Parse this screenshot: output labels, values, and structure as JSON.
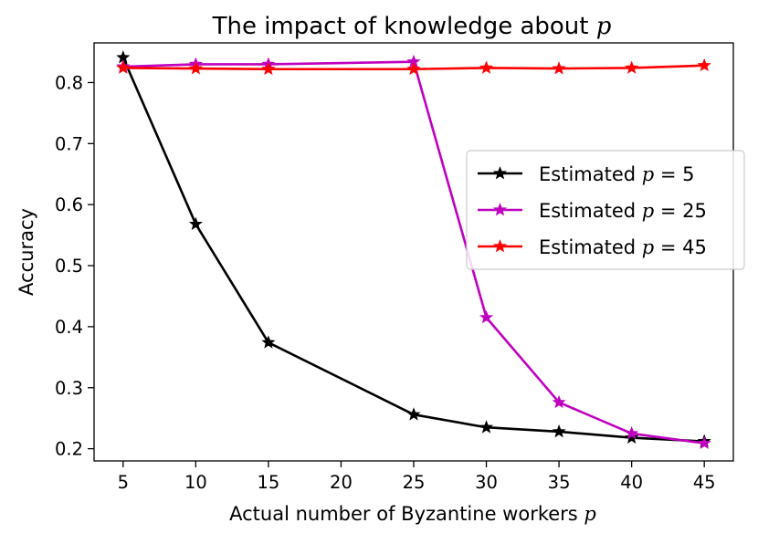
{
  "chart_data": {
    "type": "line",
    "title": "The impact of knowledge about ",
    "title_var": "p",
    "xlabel": "Actual number of Byzantine workers ",
    "xlabel_var": "p",
    "ylabel": "Accuracy",
    "xlim": [
      3.0,
      47.0
    ],
    "ylim": [
      0.18,
      0.865
    ],
    "xticks": [
      5,
      10,
      15,
      20,
      25,
      30,
      35,
      40,
      45
    ],
    "yticks": [
      0.2,
      0.3,
      0.4,
      0.5,
      0.6,
      0.7,
      0.8
    ],
    "grid": false,
    "legend_placement": "center-right",
    "series": [
      {
        "name": "Estimated ",
        "name_var": "p",
        "name_eq": " = 5",
        "color": "#000000",
        "marker": "star",
        "x": [
          5,
          10,
          15,
          25,
          30,
          35,
          40,
          45
        ],
        "y": [
          0.841,
          0.568,
          0.374,
          0.256,
          0.235,
          0.228,
          0.218,
          0.212
        ]
      },
      {
        "name": "Estimated ",
        "name_var": "p",
        "name_eq": " = 25",
        "color": "#bf00bf",
        "marker": "star",
        "x": [
          5,
          10,
          15,
          25,
          30,
          35,
          40,
          45
        ],
        "y": [
          0.826,
          0.83,
          0.83,
          0.834,
          0.415,
          0.276,
          0.225,
          0.209
        ]
      },
      {
        "name": "Estimated ",
        "name_var": "p",
        "name_eq": " = 45",
        "color": "#ff0000",
        "marker": "star",
        "x": [
          5,
          10,
          15,
          25,
          30,
          35,
          40,
          45
        ],
        "y": [
          0.824,
          0.823,
          0.822,
          0.822,
          0.824,
          0.823,
          0.824,
          0.828
        ]
      }
    ]
  }
}
